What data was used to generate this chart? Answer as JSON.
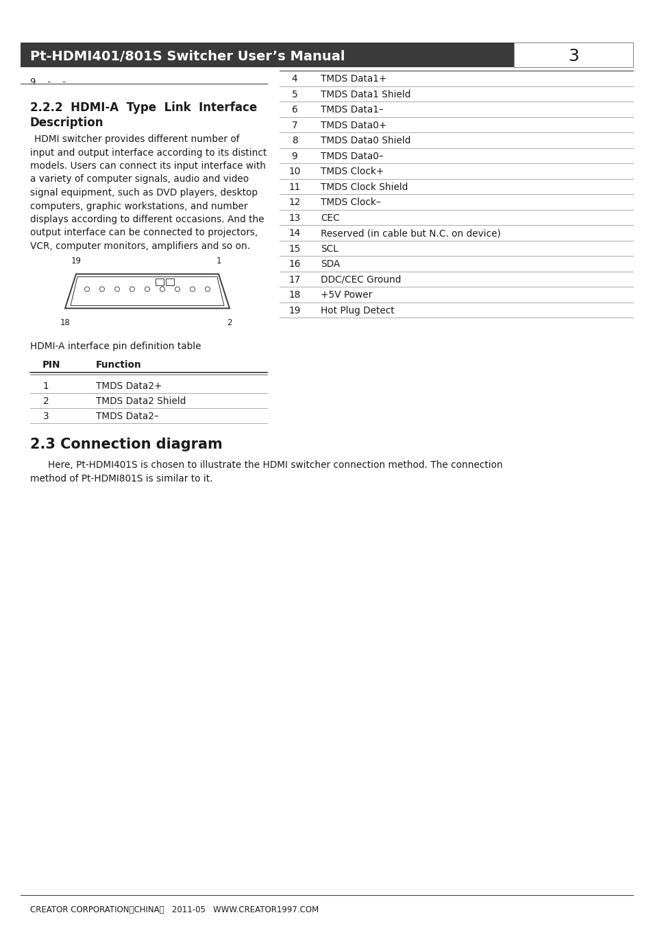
{
  "header_title": "Pt-HDMI401/801S Switcher User’s Manual",
  "header_page": "3",
  "header_bg": "#3a3a3a",
  "header_text_color": "#ffffff",
  "page_bg": "#ffffff",
  "breadcrumb": "9    -    -",
  "body_text": [
    "HDMI switcher provides different number of",
    "input and output interface according to its distinct",
    "models. Users can connect its input interface with",
    "a variety of computer signals, audio and video",
    "signal equipment, such as DVD players, desktop",
    "computers, graphic workstations, and number",
    "displays according to different occasions. And the",
    "output interface can be connected to projectors,",
    "VCR, computer monitors, amplifiers and so on."
  ],
  "right_table": [
    [
      4,
      "TMDS Data1+"
    ],
    [
      5,
      "TMDS Data1 Shield"
    ],
    [
      6,
      "TMDS Data1–"
    ],
    [
      7,
      "TMDS Data0+"
    ],
    [
      8,
      "TMDS Data0 Shield"
    ],
    [
      9,
      "TMDS Data0–"
    ],
    [
      10,
      "TMDS Clock+"
    ],
    [
      11,
      "TMDS Clock Shield"
    ],
    [
      12,
      "TMDS Clock–"
    ],
    [
      13,
      "CEC"
    ],
    [
      14,
      "Reserved (in cable but N.C. on device)"
    ],
    [
      15,
      "SCL"
    ],
    [
      16,
      "SDA"
    ],
    [
      17,
      "DDC/CEC Ground"
    ],
    [
      18,
      "+5V Power"
    ],
    [
      19,
      "Hot Plug Detect"
    ]
  ],
  "pin_table_label": "HDMI-A interface pin definition table",
  "pin_table_header": [
    "PIN",
    "Function"
  ],
  "pin_table": [
    [
      1,
      "TMDS Data2+"
    ],
    [
      2,
      "TMDS Data2 Shield"
    ],
    [
      3,
      "TMDS Data2–"
    ]
  ],
  "section2_title": "2.3 Connection diagram",
  "section2_text": [
    "Here, Pt-HDMI401S is chosen to illustrate the HDMI switcher connection method. The connection",
    "method of Pt-HDMI801S is similar to it."
  ],
  "footer_text": "CREATOR CORPORATION（CHINA）   2011-05   WWW.CREATOR1997.COM",
  "text_color": "#1a1a1a",
  "font_size_body": 10.0,
  "font_size_section": 12,
  "font_size_header": 14
}
